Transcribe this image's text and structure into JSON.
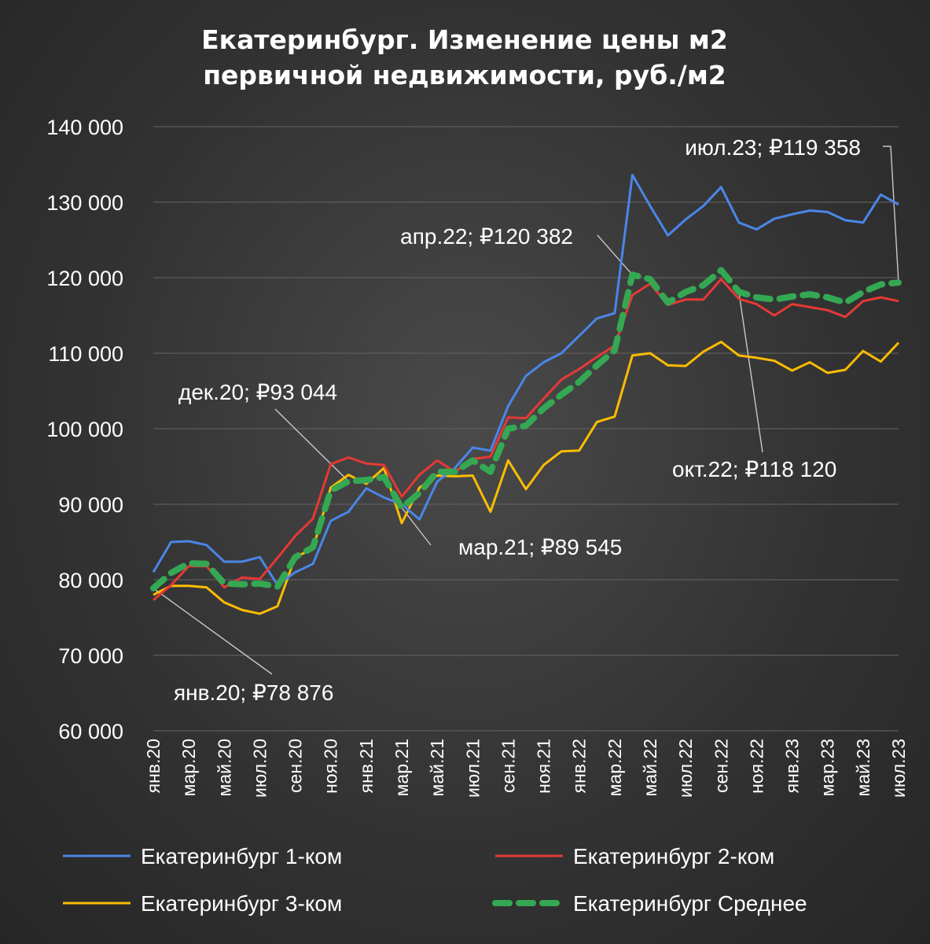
{
  "chart_data": {
    "type": "line",
    "title_lines": [
      "Екатеринбург. Изменение цены м2",
      "первичной недвижимости, руб./м2"
    ],
    "ylim": [
      60000,
      140000
    ],
    "y_ticks": [
      60000,
      70000,
      80000,
      90000,
      100000,
      110000,
      120000,
      130000,
      140000
    ],
    "y_tick_labels": [
      "60 000",
      "70 000",
      "80 000",
      "90 000",
      "100 000",
      "110 000",
      "120 000",
      "130 000",
      "140 000"
    ],
    "grid": true,
    "legend_position": "bottom",
    "x": [
      "янв.20",
      "фев.20",
      "мар.20",
      "апр.20",
      "май.20",
      "июн.20",
      "июл.20",
      "авг.20",
      "сен.20",
      "окт.20",
      "ноя.20",
      "дек.20",
      "янв.21",
      "фев.21",
      "мар.21",
      "апр.21",
      "май.21",
      "июн.21",
      "июл.21",
      "авг.21",
      "сен.21",
      "окт.21",
      "ноя.21",
      "дек.21",
      "янв.22",
      "фев.22",
      "мар.22",
      "апр.22",
      "май.22",
      "июн.22",
      "июл.22",
      "авг.22",
      "сен.22",
      "окт.22",
      "ноя.22",
      "дек.22",
      "янв.23",
      "фев.23",
      "мар.23",
      "апр.23",
      "май.23",
      "июн.23",
      "июл.23"
    ],
    "x_tick_labels": [
      "янв.20",
      "мар.20",
      "май.20",
      "июл.20",
      "сен.20",
      "ноя.20",
      "янв.21",
      "мар.21",
      "май.21",
      "июл.21",
      "сен.21",
      "ноя.21",
      "янв.22",
      "мар.22",
      "май.22",
      "июл.22",
      "сен.22",
      "ноя.22",
      "янв.23",
      "мар.23",
      "май.23",
      "июл.23"
    ],
    "series": [
      {
        "name": "Екатеринбург 1-ком",
        "color": "#4a86e8",
        "style": "solid",
        "values": [
          81000,
          85000,
          85100,
          84600,
          82400,
          82400,
          83000,
          79300,
          81000,
          82100,
          87800,
          89000,
          92100,
          90900,
          90000,
          88000,
          93000,
          94800,
          97500,
          97100,
          103000,
          107000,
          108800,
          110000,
          112300,
          114600,
          115300,
          133600,
          129500,
          125600,
          127700,
          129500,
          132000,
          127300,
          126400,
          127800,
          128400,
          128900,
          128700,
          127600,
          127300,
          131000,
          129700
        ]
      },
      {
        "name": "Екатеринбург 2-ком",
        "color": "#e53935",
        "style": "solid",
        "values": [
          77300,
          79300,
          81800,
          81800,
          79000,
          80300,
          80100,
          82900,
          85800,
          88100,
          95300,
          96200,
          95400,
          95200,
          91000,
          93900,
          95800,
          94300,
          96000,
          96300,
          101500,
          101400,
          104000,
          106500,
          107900,
          109500,
          111000,
          117700,
          119200,
          116400,
          117100,
          117100,
          119800,
          117200,
          116500,
          115000,
          116500,
          116100,
          115700,
          114800,
          116900,
          117400,
          116900
        ]
      },
      {
        "name": "Екатеринбург 3-ком",
        "color": "#fbbc04",
        "style": "solid",
        "values": [
          78000,
          79200,
          79200,
          79000,
          77000,
          76000,
          75500,
          76500,
          83000,
          84100,
          92200,
          93900,
          92700,
          94800,
          87500,
          92200,
          93800,
          93700,
          93800,
          89000,
          95800,
          92000,
          95200,
          97000,
          97100,
          100900,
          101600,
          109700,
          110000,
          108400,
          108300,
          110200,
          111500,
          109700,
          109400,
          109000,
          107700,
          108800,
          107400,
          107800,
          110300,
          108900,
          111400
        ]
      },
      {
        "name": "Екатеринбург Среднее",
        "color": "#34a853",
        "style": "dashed",
        "values": [
          78876,
          80900,
          82200,
          82100,
          79500,
          79400,
          79500,
          79100,
          83000,
          84300,
          91800,
          93044,
          93200,
          93600,
          89545,
          91500,
          94300,
          94300,
          95800,
          94300,
          100000,
          100400,
          102700,
          104500,
          106200,
          108400,
          110400,
          120382,
          119800,
          116700,
          118100,
          119000,
          121000,
          118120,
          117400,
          117100,
          117500,
          117800,
          117400,
          116700,
          118100,
          119100,
          119358
        ]
      }
    ],
    "annotations": [
      {
        "text": "янв.20;  ₽78 876",
        "point_index": 0,
        "series": "Екатеринбург Среднее"
      },
      {
        "text": "дек.20;  ₽93 044",
        "point_index": 11,
        "series": "Екатеринбург Среднее"
      },
      {
        "text": "мар.21;  ₽89 545",
        "point_index": 14,
        "series": "Екатеринбург Среднее"
      },
      {
        "text": "апр.22;  ₽120 382",
        "point_index": 27,
        "series": "Екатеринбург Среднее"
      },
      {
        "text": "окт.22;  ₽118 120",
        "point_index": 33,
        "series": "Екатеринбург Среднее"
      },
      {
        "text": "июл.23;  ₽119 358",
        "point_index": 42,
        "series": "Екатеринбург Среднее"
      }
    ]
  }
}
